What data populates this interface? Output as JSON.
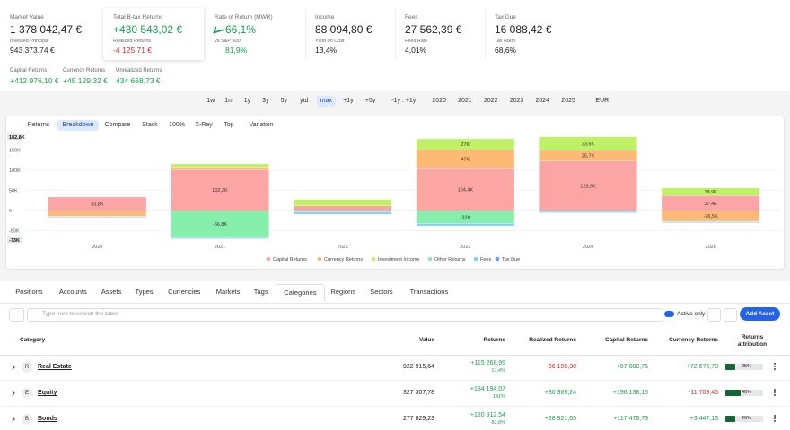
{
  "metrics": [
    {
      "label": "Market Value",
      "value": "1 378 042,47 €",
      "sub_label": "Invested Principal",
      "sub_value": "943 373,74 €",
      "color": "#222222",
      "sub_color": "#222222"
    },
    {
      "label": "Total B-tax Returns",
      "value": "+430 543,02 €",
      "sub_label": "Realized Returns",
      "sub_value": "-4 125,71 €",
      "color": "#16a34a",
      "sub_color": "#dc2626"
    },
    {
      "label": "Rate of Return (MWR)",
      "value": "66,1%",
      "sub_label": "vs S&P 500",
      "sub_value": "81,9%",
      "color": "#16a34a",
      "sub_color": "#16a34a"
    },
    {
      "label": "Income",
      "value": "88 094,80 €",
      "sub_label": "Yield on Cost",
      "sub_value": "13,4%",
      "color": "#222222",
      "sub_color": "#222222"
    },
    {
      "label": "Fees",
      "value": "27 562,39 €",
      "sub_label": "Fees Rate",
      "sub_value": "4,01%",
      "color": "#222222",
      "sub_color": "#222222"
    },
    {
      "label": "Tax Due",
      "value": "16 088,42 €",
      "sub_label": "Tax Ratio",
      "sub_value": "68,6%",
      "color": "#222222",
      "sub_color": "#222222"
    }
  ],
  "secondary_metrics": [
    {
      "label": "Capital Returns",
      "value": "+412 976,10 €",
      "color": "#16a34a"
    },
    {
      "label": "Currency Returns",
      "value": "+45 129,32 €",
      "color": "#16a34a"
    },
    {
      "label": "Unrealized Returns",
      "value": "434 668,73 €",
      "color": "#16a34a"
    }
  ],
  "ranges": [
    "1w",
    "1m",
    "1y",
    "3y",
    "5y",
    "ytd",
    "max",
    "+1y",
    "+5y",
    "-1y : +1y",
    "2020",
    "2021",
    "2022",
    "2023",
    "2024",
    "2025",
    "EUR"
  ],
  "selected_range": 6,
  "chart_tabs": [
    "Returns",
    "Breakdown",
    "Compare",
    "Stack",
    "100%",
    "X-Ray",
    "Top",
    "Variation"
  ],
  "selected_chart_tab": 1,
  "chart_data": {
    "type": "bar",
    "stacked": true,
    "categories": [
      "2020",
      "2021",
      "2022",
      "2023",
      "2024",
      "2025"
    ],
    "series": [
      {
        "name": "Capital Returns",
        "color": "#fca5a5",
        "values": [
          33800,
          102300,
          12000,
          104400,
          123900,
          37400
        ],
        "value_labels": [
          "33,8K",
          "102,3K",
          null,
          "104,4K",
          "123,9K",
          "37,4K"
        ]
      },
      {
        "name": "Currency Returns",
        "color": "#fdba74",
        "values": [
          -14000,
          6000,
          0,
          47000,
          25700,
          -26500
        ],
        "value_labels": [
          null,
          null,
          null,
          "47K",
          "25,7K",
          "-26,5K"
        ]
      },
      {
        "name": "Investment Income",
        "color": "#bef264",
        "values": [
          0,
          8000,
          16000,
          27000,
          33600,
          18900
        ],
        "value_labels": [
          null,
          null,
          null,
          "27K",
          "33,6K",
          "18,9K"
        ]
      },
      {
        "name": "Other Returns",
        "color": "#86efac",
        "values": [
          0,
          -66800,
          -3000,
          -32000,
          0,
          0
        ],
        "value_labels": [
          null,
          "-66,8K",
          null,
          "-32K",
          null,
          null
        ]
      },
      {
        "name": "Fees",
        "color": "#7dd3fc",
        "values": [
          -1000,
          -2000,
          -4000,
          -4000,
          -3000,
          -2000
        ],
        "value_labels": [
          null,
          null,
          null,
          null,
          null,
          null
        ]
      },
      {
        "name": "Tax Due",
        "color": "#60a5fa",
        "values": [
          -1000,
          -1500,
          -2000,
          -2000,
          -2000,
          -1000
        ],
        "value_labels": [
          null,
          null,
          null,
          null,
          null,
          null
        ]
      }
    ],
    "ylim": [
      -73000,
      182800
    ],
    "ylim_labels": [
      "-73K",
      "182,8K"
    ],
    "yticks": [
      {
        "value": -50000,
        "label": "-50K"
      },
      0,
      {
        "value": 50000,
        "label": "50K"
      },
      {
        "value": 100000,
        "label": "100K"
      },
      {
        "value": 150000,
        "label": "150K"
      }
    ],
    "grid": true,
    "legend": "bottom"
  },
  "tabs": [
    "Positions",
    "Accounts",
    "Assets",
    "Types",
    "Currencies",
    "Markets",
    "Tags",
    "Categories",
    "Regions",
    "Sectors",
    "Transactions"
  ],
  "selected_tab": 7,
  "search_placeholder": "Type here to search the table",
  "active_only": "Active only",
  "add_button": "Add Asset",
  "table": {
    "columns": [
      "Category",
      "Value",
      "Returns",
      "Realized Returns",
      "Capital Returns",
      "Currency Returns",
      "Returns attribution"
    ],
    "rows": [
      {
        "badge": "R",
        "name": "Real Estate",
        "value": "922 915,64",
        "returns": "+115 268,99",
        "returns_pct": "17,4%",
        "realized": "-66 195,30",
        "capital": "+67 682,75",
        "currency": "+72 676,78",
        "attribution": {
          "value": 25,
          "label": "25%"
        }
      },
      {
        "badge": "E",
        "name": "Equity",
        "value": "327 307,78",
        "returns": "+184 194,07",
        "returns_pct": "141%",
        "realized": "+30 369,24",
        "capital": "+196 138,15",
        "currency": "-11 709,45",
        "attribution": {
          "value": 40,
          "label": "40%"
        }
      },
      {
        "badge": "B",
        "name": "Bonds",
        "value": "277 829,23",
        "returns": "+120 912,54",
        "returns_pct": "82,8%",
        "realized": "+28 921,05",
        "capital": "+117 479,79",
        "currency": "+3 447,13",
        "attribution": {
          "value": 26,
          "label": "26%"
        }
      }
    ]
  }
}
